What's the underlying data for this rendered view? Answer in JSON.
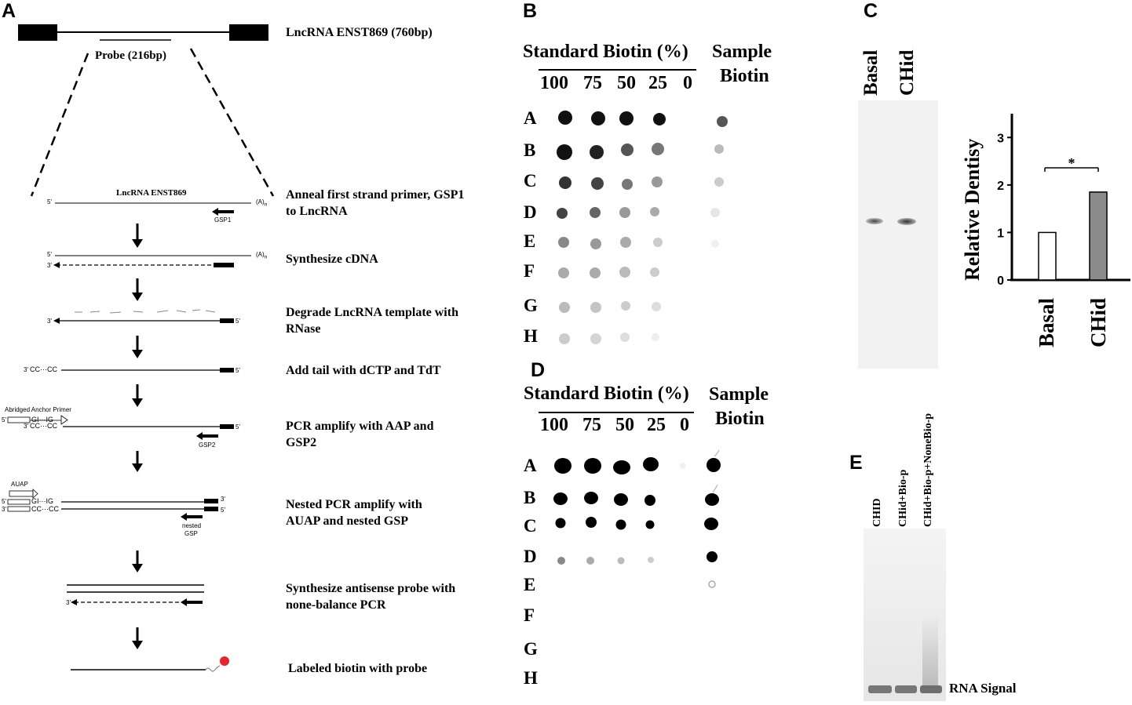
{
  "panels": {
    "A": {
      "letter": "A",
      "gene_label": "LncRNA ENST869 (760bp)",
      "probe_label": "Probe (216bp)",
      "template_label": "LncRNA ENST869",
      "small_labels": {
        "five_prime": "5'",
        "three_prime": "3'",
        "polyA": "(A)",
        "polyA_n": "n",
        "gsp1": "GSP1",
        "gsp2": "GSP2",
        "nested": "nested",
        "nested_gsp": "GSP",
        "anchor_primer": "Abridged Anchor Primer",
        "auap": "AUAP",
        "cc_tail": "CC···CC",
        "gi_ig": "GI···IG"
      },
      "steps": [
        "Anneal first strand primer, GSP1 to LncRNA",
        "Synthesize cDNA",
        "Degrade LncRNA template with RNase",
        "Add tail with dCTP and TdT",
        "PCR amplify with AAP and GSP2",
        "Nested PCR amplify with AUAP and nested GSP",
        "Synthesize antisense probe with none-balance PCR",
        "Labeled biotin with probe"
      ]
    },
    "B": {
      "letter": "B",
      "header": "Standard Biotin (%)",
      "sample_line1": "Sample",
      "sample_line2": "Biotin",
      "columns": [
        "100",
        "75",
        "50",
        "25",
        "0"
      ],
      "rows": [
        "A",
        "B",
        "C",
        "D",
        "E",
        "F",
        "G",
        "H"
      ]
    },
    "C": {
      "letter": "C",
      "lanes": [
        "Basal",
        "CHid"
      ],
      "chart_data": {
        "type": "bar",
        "categories": [
          "Basal",
          "CHid"
        ],
        "values": [
          1.0,
          1.85
        ],
        "ylabel": "Relative Dentisy",
        "ylim": [
          0,
          3.5
        ],
        "yticks": [
          0,
          1,
          2,
          3
        ],
        "bar_colors": [
          "#ffffff",
          "#8c8c8c"
        ],
        "significance": "*"
      }
    },
    "D": {
      "letter": "D",
      "header": "Standard Biotin (%)",
      "sample_line1": "Sample",
      "sample_line2": "Biotin",
      "columns": [
        "100",
        "75",
        "50",
        "25",
        "0"
      ],
      "rows": [
        "A",
        "B",
        "C",
        "D",
        "E",
        "F",
        "G",
        "H"
      ]
    },
    "E": {
      "letter": "E",
      "lanes": [
        "CHID",
        "CHid+Bio-p",
        "CHid+Bio-p+NoneBio-p"
      ],
      "signal_label": "RNA Signal"
    }
  }
}
